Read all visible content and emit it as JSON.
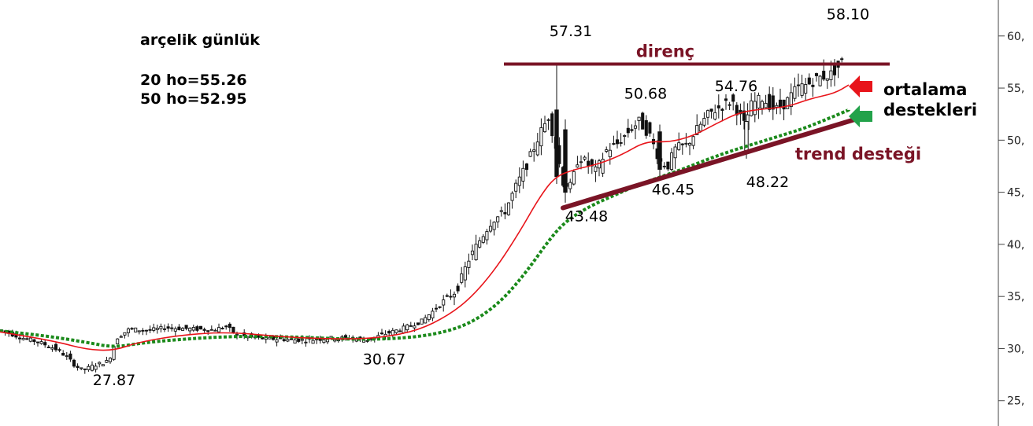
{
  "chart_data": {
    "type": "candlestick",
    "title": "arçelik günlük",
    "ma_labels": [
      "20 ho=55.26",
      "50 ho=52.95"
    ],
    "ylim": [
      24,
      63
    ],
    "y_ticks": [
      {
        "value": 25,
        "label": "25,"
      },
      {
        "value": 30,
        "label": "30,"
      },
      {
        "value": 35,
        "label": "35,"
      },
      {
        "value": 40,
        "label": "40,"
      },
      {
        "value": 45,
        "label": "45,"
      },
      {
        "value": 50,
        "label": "50,"
      },
      {
        "value": 55,
        "label": "55,"
      },
      {
        "value": 60,
        "label": "60,"
      }
    ],
    "price_anchors": [
      {
        "x": 0,
        "y": 31.8
      },
      {
        "x": 25,
        "y": 31.1
      },
      {
        "x": 50,
        "y": 30.6
      },
      {
        "x": 70,
        "y": 30.0
      },
      {
        "x": 85,
        "y": 29.2
      },
      {
        "x": 95,
        "y": 28.4
      },
      {
        "x": 105,
        "y": 27.9
      },
      {
        "x": 120,
        "y": 28.4
      },
      {
        "x": 138,
        "y": 28.8
      },
      {
        "x": 148,
        "y": 31.0
      },
      {
        "x": 165,
        "y": 31.9
      },
      {
        "x": 185,
        "y": 31.7
      },
      {
        "x": 210,
        "y": 32.0
      },
      {
        "x": 240,
        "y": 31.9
      },
      {
        "x": 270,
        "y": 31.8
      },
      {
        "x": 288,
        "y": 32.1
      },
      {
        "x": 300,
        "y": 31.3
      },
      {
        "x": 325,
        "y": 31.0
      },
      {
        "x": 355,
        "y": 30.9
      },
      {
        "x": 390,
        "y": 30.8
      },
      {
        "x": 420,
        "y": 31.0
      },
      {
        "x": 445,
        "y": 31.0
      },
      {
        "x": 465,
        "y": 30.8
      },
      {
        "x": 485,
        "y": 31.3
      },
      {
        "x": 510,
        "y": 31.9
      },
      {
        "x": 535,
        "y": 32.6
      },
      {
        "x": 550,
        "y": 33.6
      },
      {
        "x": 565,
        "y": 34.6
      },
      {
        "x": 580,
        "y": 35.6
      },
      {
        "x": 595,
        "y": 38.5
      },
      {
        "x": 610,
        "y": 40.5
      },
      {
        "x": 625,
        "y": 42.3
      },
      {
        "x": 640,
        "y": 43.0
      },
      {
        "x": 655,
        "y": 45.5
      },
      {
        "x": 670,
        "y": 47.8
      },
      {
        "x": 685,
        "y": 50.5
      },
      {
        "x": 697,
        "y": 52.3
      },
      {
        "x": 707,
        "y": 49.0
      },
      {
        "x": 715,
        "y": 46.0
      },
      {
        "x": 725,
        "y": 45.5
      },
      {
        "x": 735,
        "y": 48.5
      },
      {
        "x": 745,
        "y": 47.8
      },
      {
        "x": 757,
        "y": 47.0
      },
      {
        "x": 770,
        "y": 49.0
      },
      {
        "x": 785,
        "y": 49.7
      },
      {
        "x": 800,
        "y": 51.0
      },
      {
        "x": 812,
        "y": 51.8
      },
      {
        "x": 825,
        "y": 50.5
      },
      {
        "x": 838,
        "y": 48.0
      },
      {
        "x": 848,
        "y": 47.5
      },
      {
        "x": 858,
        "y": 49.2
      },
      {
        "x": 872,
        "y": 49.5
      },
      {
        "x": 885,
        "y": 51.0
      },
      {
        "x": 900,
        "y": 52.5
      },
      {
        "x": 915,
        "y": 53.2
      },
      {
        "x": 930,
        "y": 53.8
      },
      {
        "x": 945,
        "y": 51.5
      },
      {
        "x": 955,
        "y": 53.5
      },
      {
        "x": 968,
        "y": 54.0
      },
      {
        "x": 985,
        "y": 52.9
      },
      {
        "x": 998,
        "y": 53.6
      },
      {
        "x": 1012,
        "y": 55.0
      },
      {
        "x": 1025,
        "y": 55.3
      },
      {
        "x": 1040,
        "y": 56.0
      },
      {
        "x": 1055,
        "y": 56.3
      },
      {
        "x": 1068,
        "y": 57.3
      },
      {
        "x": 1073,
        "y": 58.1
      }
    ],
    "ma20_color": "#e8141a",
    "ma50_color": "#1b8a1b",
    "ma20": [
      {
        "x": 0,
        "y": 31.6
      },
      {
        "x": 70,
        "y": 30.7
      },
      {
        "x": 110,
        "y": 29.9
      },
      {
        "x": 145,
        "y": 29.8
      },
      {
        "x": 175,
        "y": 30.6
      },
      {
        "x": 230,
        "y": 31.3
      },
      {
        "x": 290,
        "y": 31.6
      },
      {
        "x": 360,
        "y": 31.1
      },
      {
        "x": 430,
        "y": 30.9
      },
      {
        "x": 480,
        "y": 31.0
      },
      {
        "x": 530,
        "y": 31.7
      },
      {
        "x": 570,
        "y": 33.2
      },
      {
        "x": 600,
        "y": 35.0
      },
      {
        "x": 630,
        "y": 37.7
      },
      {
        "x": 660,
        "y": 41.2
      },
      {
        "x": 685,
        "y": 44.5
      },
      {
        "x": 705,
        "y": 46.5
      },
      {
        "x": 730,
        "y": 47.2
      },
      {
        "x": 760,
        "y": 47.7
      },
      {
        "x": 790,
        "y": 48.6
      },
      {
        "x": 820,
        "y": 49.9
      },
      {
        "x": 850,
        "y": 49.8
      },
      {
        "x": 880,
        "y": 50.4
      },
      {
        "x": 910,
        "y": 51.6
      },
      {
        "x": 940,
        "y": 52.7
      },
      {
        "x": 970,
        "y": 53.0
      },
      {
        "x": 1000,
        "y": 53.2
      },
      {
        "x": 1030,
        "y": 54.0
      },
      {
        "x": 1060,
        "y": 54.5
      },
      {
        "x": 1078,
        "y": 55.3
      }
    ],
    "ma50": [
      {
        "x": 0,
        "y": 31.7
      },
      {
        "x": 60,
        "y": 31.2
      },
      {
        "x": 110,
        "y": 30.6
      },
      {
        "x": 145,
        "y": 30.1
      },
      {
        "x": 185,
        "y": 30.6
      },
      {
        "x": 250,
        "y": 31.0
      },
      {
        "x": 310,
        "y": 31.2
      },
      {
        "x": 380,
        "y": 31.1
      },
      {
        "x": 440,
        "y": 30.9
      },
      {
        "x": 490,
        "y": 30.9
      },
      {
        "x": 540,
        "y": 31.2
      },
      {
        "x": 580,
        "y": 31.9
      },
      {
        "x": 610,
        "y": 33.0
      },
      {
        "x": 640,
        "y": 34.8
      },
      {
        "x": 670,
        "y": 37.5
      },
      {
        "x": 700,
        "y": 40.7
      },
      {
        "x": 720,
        "y": 42.3
      },
      {
        "x": 750,
        "y": 43.7
      },
      {
        "x": 780,
        "y": 44.7
      },
      {
        "x": 810,
        "y": 45.7
      },
      {
        "x": 840,
        "y": 46.5
      },
      {
        "x": 870,
        "y": 47.3
      },
      {
        "x": 900,
        "y": 48.2
      },
      {
        "x": 930,
        "y": 49.0
      },
      {
        "x": 960,
        "y": 49.7
      },
      {
        "x": 990,
        "y": 50.4
      },
      {
        "x": 1020,
        "y": 51.1
      },
      {
        "x": 1050,
        "y": 52.0
      },
      {
        "x": 1078,
        "y": 52.9
      }
    ],
    "resistance": {
      "label": "direnç",
      "value": 57.3,
      "x_from": 640,
      "x_to": 1130,
      "color": "#7a1426"
    },
    "trendline": {
      "label": "trend desteği",
      "from": {
        "x": 715,
        "y": 43.5
      },
      "to": {
        "x": 1086,
        "y": 52.0
      },
      "color": "#7a1426"
    },
    "price_labels": [
      {
        "text": "27.87",
        "x": 145,
        "y": 26.5
      },
      {
        "text": "30.67",
        "x": 488,
        "y": 28.5
      },
      {
        "text": "57.31",
        "x": 725,
        "y": 60.0
      },
      {
        "text": "50.68",
        "x": 820,
        "y": 54.0
      },
      {
        "text": "54.76",
        "x": 935,
        "y": 54.7
      },
      {
        "text": "58.10",
        "x": 1077,
        "y": 61.6
      },
      {
        "text": "46.45",
        "x": 855,
        "y": 44.8
      },
      {
        "text": "48.22",
        "x": 975,
        "y": 45.5
      },
      {
        "text": "43.48",
        "x": 745,
        "y": 42.2
      }
    ],
    "support_annotations": {
      "label_line1": "ortalama",
      "label_line2": "destekleri",
      "arrow_red": "#e8141a",
      "arrow_green": "#22a24a"
    }
  }
}
